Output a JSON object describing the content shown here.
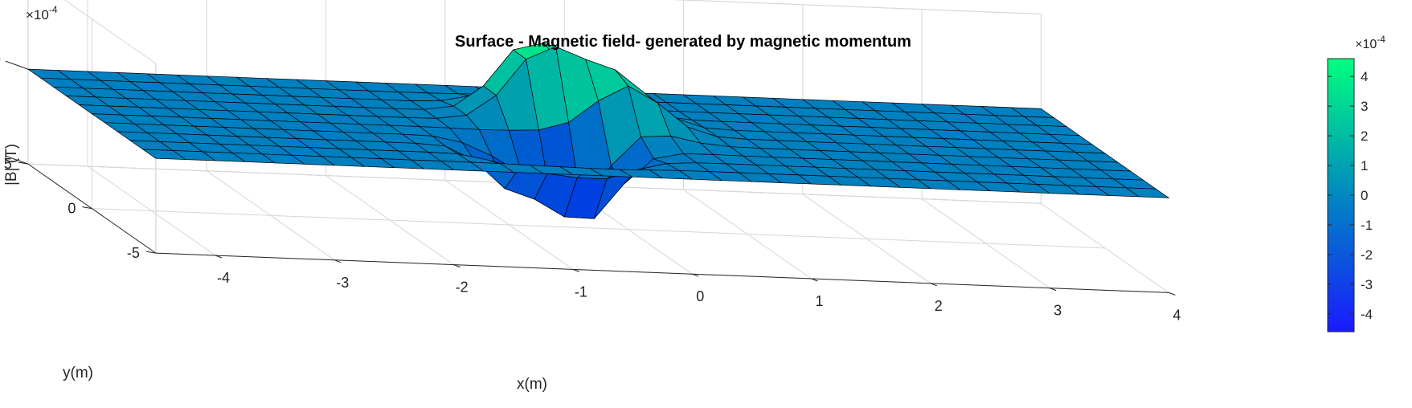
{
  "chart_data": {
    "type": "surface",
    "title": "Surface - Magnetic field- generated by magnetic momentum",
    "xlabel": "x(m)",
    "ylabel": "y(m)",
    "zlabel": "|B| (T)",
    "z_exponent_label": "×10",
    "z_exponent_power": "-4",
    "x_ticks": [
      "-4",
      "-3",
      "-2",
      "-1",
      "0",
      "1",
      "2",
      "3",
      "4"
    ],
    "y_ticks": [
      "5",
      "0",
      "-5"
    ],
    "z_ticks": [
      "5",
      "0",
      "-5"
    ],
    "xlim": [
      -4.5,
      4
    ],
    "ylim": [
      -5,
      5
    ],
    "zlim": [
      -0.0005,
      0.0005
    ],
    "colorbar": {
      "colormap": "winter",
      "range": [
        -0.00046,
        0.00046
      ],
      "ticks": [
        "4",
        "3",
        "2",
        "1",
        "0",
        "-1",
        "-2",
        "-3",
        "-4"
      ],
      "exponent_label": "×10",
      "exponent_power": "-4",
      "color_low": "#1a1aff",
      "color_high": "#00ff80"
    },
    "surface_x_range": [
      -4.5,
      4
    ],
    "surface_y_range": [
      -5,
      5
    ],
    "peak_extremes": [
      {
        "x": -0.6,
        "y": 1.5,
        "z": 0.00045
      },
      {
        "x": -0.6,
        "y": -1.5,
        "z": -0.00045
      },
      {
        "x": 0.0,
        "y": 0.5,
        "z": 0.0003
      },
      {
        "x": -1.2,
        "y": -2.0,
        "z": -0.0002
      }
    ],
    "grid": true,
    "edge_color": "#000000"
  }
}
